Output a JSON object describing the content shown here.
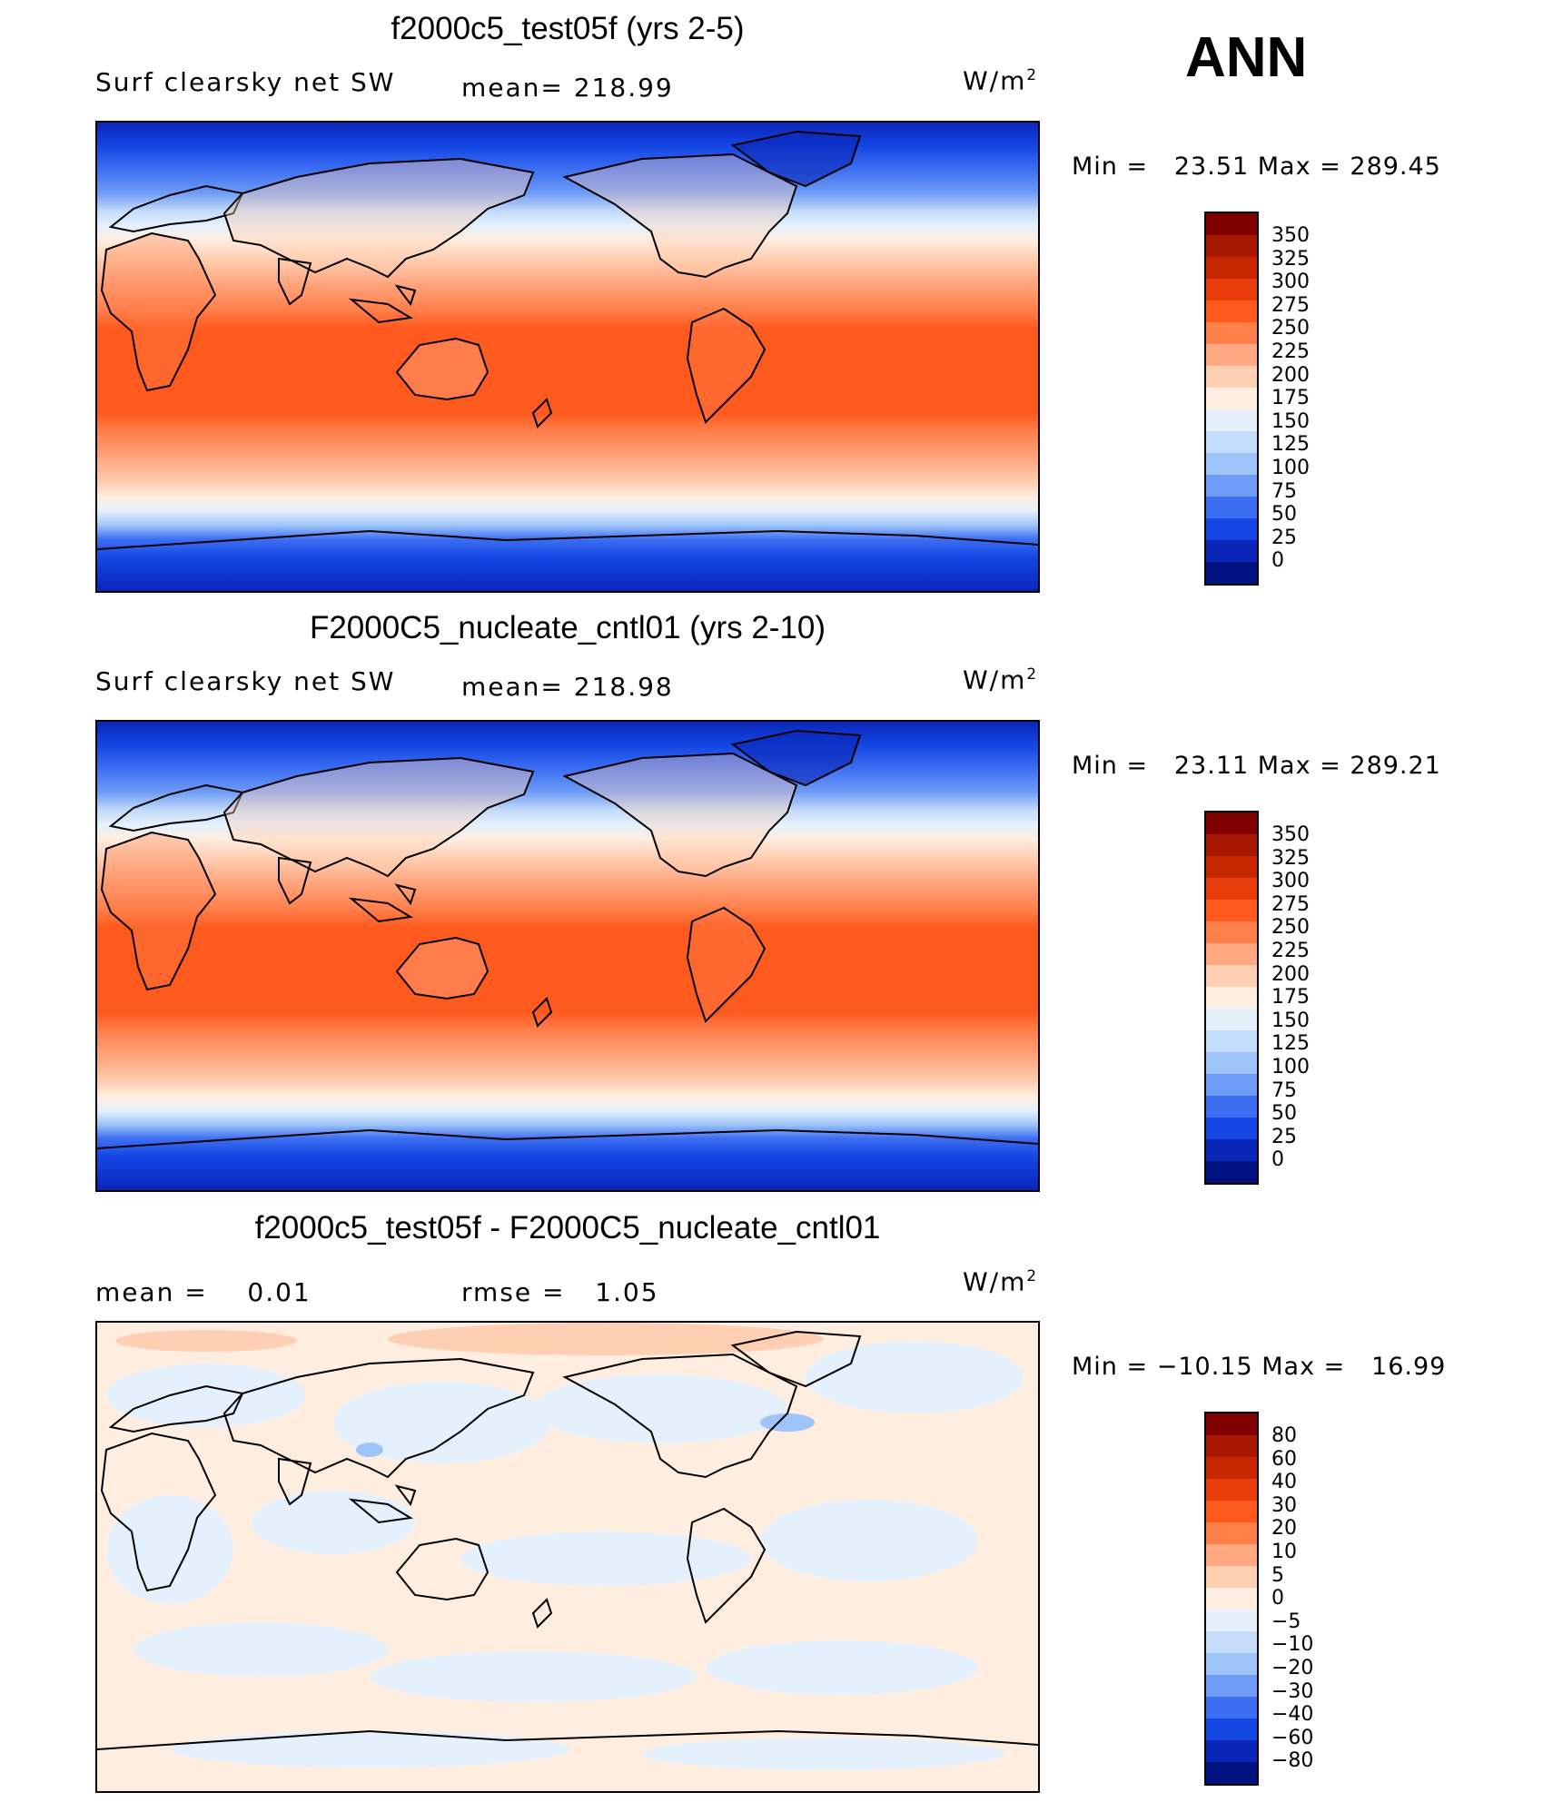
{
  "season": "ANN",
  "panels": [
    {
      "title": "f2000c5_test05f (yrs 2-5)",
      "variable": "Surf clearsky net SW",
      "stat": "mean= 218.99",
      "units": "W/m",
      "units_exp": "2",
      "min_label": "Min =",
      "min": "23.51",
      "max_label": "Max =",
      "max": "289.45",
      "colorbar": [
        "350",
        "325",
        "300",
        "275",
        "250",
        "225",
        "200",
        "175",
        "150",
        "125",
        "100",
        "75",
        "50",
        "25",
        "0"
      ]
    },
    {
      "title": "F2000C5_nucleate_cntl01 (yrs 2-10)",
      "variable": "Surf clearsky net SW",
      "stat": "mean= 218.98",
      "units": "W/m",
      "units_exp": "2",
      "min_label": "Min =",
      "min": "23.11",
      "max_label": "Max =",
      "max": "289.21",
      "colorbar": [
        "350",
        "325",
        "300",
        "275",
        "250",
        "225",
        "200",
        "175",
        "150",
        "125",
        "100",
        "75",
        "50",
        "25",
        "0"
      ]
    },
    {
      "title": "f2000c5_test05f - F2000C5_nucleate_cntl01",
      "mean_label": "mean =",
      "mean": "0.01",
      "rmse_label": "rmse =",
      "rmse": "1.05",
      "units": "W/m",
      "units_exp": "2",
      "min_label": "Min =",
      "min": "−10.15",
      "max_label": "Max =",
      "max": "16.99",
      "colorbar": [
        "80",
        "60",
        "40",
        "30",
        "20",
        "10",
        "5",
        "0",
        "−5",
        "−10",
        "−20",
        "−30",
        "−40",
        "−60",
        "−80"
      ]
    }
  ],
  "colors": {
    "warm_scale": [
      "#800000",
      "#a81800",
      "#c82800",
      "#e83c0c",
      "#ff5a1e",
      "#ff7f4a",
      "#ffa882",
      "#ffcfb3",
      "#ffeee0",
      "#e4f0fc",
      "#c4dcfa",
      "#9ec4fa",
      "#6e9cf6",
      "#3c6ef2",
      "#1446e4",
      "#0a26b8",
      "#001280"
    ],
    "land_outline": "#000000"
  },
  "chart_data": [
    {
      "type": "heatmap",
      "title": "f2000c5_test05f (yrs 2-5)",
      "field": "Surf clearsky net SW",
      "units": "W/m2",
      "mean": 218.99,
      "min": 23.51,
      "max": 289.45,
      "levels": [
        0,
        25,
        50,
        75,
        100,
        125,
        150,
        175,
        200,
        225,
        250,
        275,
        300,
        325,
        350
      ]
    },
    {
      "type": "heatmap",
      "title": "F2000C5_nucleate_cntl01 (yrs 2-10)",
      "field": "Surf clearsky net SW",
      "units": "W/m2",
      "mean": 218.98,
      "min": 23.11,
      "max": 289.21,
      "levels": [
        0,
        25,
        50,
        75,
        100,
        125,
        150,
        175,
        200,
        225,
        250,
        275,
        300,
        325,
        350
      ]
    },
    {
      "type": "heatmap",
      "title": "f2000c5_test05f - F2000C5_nucleate_cntl01",
      "units": "W/m2",
      "mean": 0.01,
      "rmse": 1.05,
      "min": -10.15,
      "max": 16.99,
      "levels": [
        -80,
        -60,
        -40,
        -30,
        -20,
        -10,
        -5,
        0,
        5,
        10,
        20,
        30,
        40,
        60,
        80
      ]
    }
  ]
}
